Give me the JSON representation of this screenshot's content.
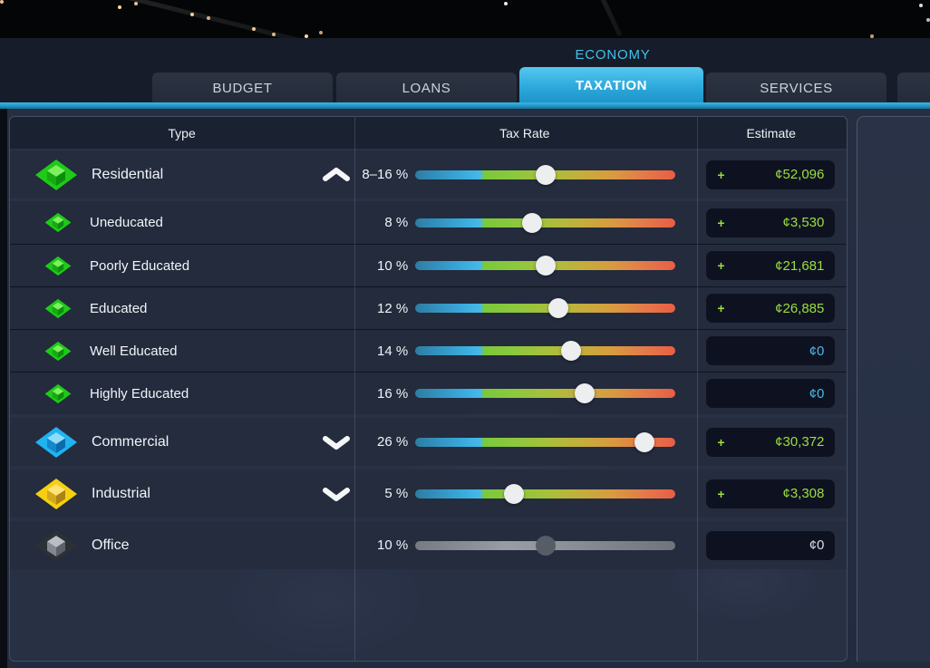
{
  "window": {
    "title": "ECONOMY"
  },
  "tabs": [
    {
      "label": "BUDGET",
      "active": false
    },
    {
      "label": "LOANS",
      "active": false
    },
    {
      "label": "TAXATION",
      "active": true
    },
    {
      "label": "SERVICES",
      "active": false
    }
  ],
  "table": {
    "columns": [
      "Type",
      "Tax Rate",
      "Estimate"
    ],
    "currency_symbol": "¢",
    "rows": [
      {
        "id": "residential",
        "label": "Residential",
        "kind": "parent",
        "icon": "residential-zone-icon",
        "icon_colors": {
          "base": "#1ecb17",
          "top": "#7df05f",
          "left": "#16a912",
          "right": "#0c8d0e"
        },
        "chevron": "up",
        "rate_label": "8–16 %",
        "slider_pct": 50,
        "slider_disabled": false,
        "estimate": {
          "plus": "+",
          "value": "¢52,096",
          "color": "#9ade3f"
        }
      },
      {
        "id": "uneducated",
        "label": "Uneducated",
        "kind": "sub",
        "icon": "residential-zone-icon",
        "icon_colors": {
          "base": "#1ecb17",
          "top": "#7df05f",
          "left": "#16a912",
          "right": "#0c8d0e"
        },
        "chevron": "none",
        "rate_label": "8 %",
        "slider_pct": 45,
        "slider_disabled": false,
        "estimate": {
          "plus": "+",
          "value": "¢3,530",
          "color": "#9ade3f"
        }
      },
      {
        "id": "poorly-educated",
        "label": "Poorly Educated",
        "kind": "sub",
        "icon": "residential-zone-icon",
        "icon_colors": {
          "base": "#1ecb17",
          "top": "#7df05f",
          "left": "#16a912",
          "right": "#0c8d0e"
        },
        "chevron": "none",
        "rate_label": "10 %",
        "slider_pct": 50,
        "slider_disabled": false,
        "estimate": {
          "plus": "+",
          "value": "¢21,681",
          "color": "#9ade3f"
        }
      },
      {
        "id": "educated",
        "label": "Educated",
        "kind": "sub",
        "icon": "residential-zone-icon",
        "icon_colors": {
          "base": "#1ecb17",
          "top": "#7df05f",
          "left": "#16a912",
          "right": "#0c8d0e"
        },
        "chevron": "none",
        "rate_label": "12 %",
        "slider_pct": 55,
        "slider_disabled": false,
        "estimate": {
          "plus": "+",
          "value": "¢26,885",
          "color": "#9ade3f"
        }
      },
      {
        "id": "well-educated",
        "label": "Well Educated",
        "kind": "sub",
        "icon": "residential-zone-icon",
        "icon_colors": {
          "base": "#1ecb17",
          "top": "#7df05f",
          "left": "#16a912",
          "right": "#0c8d0e"
        },
        "chevron": "none",
        "rate_label": "14 %",
        "slider_pct": 60,
        "slider_disabled": false,
        "estimate": {
          "plus": "",
          "value": "¢0",
          "color": "#49b8ea"
        }
      },
      {
        "id": "highly-educated",
        "label": "Highly Educated",
        "kind": "sub",
        "icon": "residential-zone-icon",
        "icon_colors": {
          "base": "#1ecb17",
          "top": "#7df05f",
          "left": "#16a912",
          "right": "#0c8d0e"
        },
        "chevron": "none",
        "rate_label": "16 %",
        "slider_pct": 65,
        "slider_disabled": false,
        "estimate": {
          "plus": "",
          "value": "¢0",
          "color": "#49b8ea"
        }
      },
      {
        "id": "commercial",
        "label": "Commercial",
        "kind": "parent",
        "icon": "commercial-zone-icon",
        "icon_colors": {
          "base": "#1fb3ef",
          "top": "#8edcf8",
          "left": "#1487cd",
          "right": "#0c6bab"
        },
        "chevron": "down",
        "rate_label": "26 %",
        "slider_pct": 88,
        "slider_disabled": false,
        "estimate": {
          "plus": "+",
          "value": "¢30,372",
          "color": "#9ade3f"
        }
      },
      {
        "id": "industrial",
        "label": "Industrial",
        "kind": "parent",
        "icon": "industrial-zone-icon",
        "icon_colors": {
          "base": "#f6d010",
          "top": "#ffe27a",
          "left": "#d2a81e",
          "right": "#ab8312"
        },
        "chevron": "down",
        "rate_label": "5 %",
        "slider_pct": 38,
        "slider_disabled": false,
        "estimate": {
          "plus": "+",
          "value": "¢3,308",
          "color": "#9ade3f"
        }
      },
      {
        "id": "office",
        "label": "Office",
        "kind": "parent",
        "icon": "office-zone-icon",
        "icon_colors": {
          "base": "#2c3136",
          "top": "#b8bec4",
          "left": "#82888f",
          "right": "#5c6268"
        },
        "chevron": "none",
        "rate_label": "10 %",
        "slider_pct": 50,
        "slider_disabled": true,
        "estimate": {
          "plus": "",
          "value": "¢0",
          "color": "#d8dce2"
        }
      }
    ]
  },
  "colors": {
    "accent_cyan": "#41c1ea",
    "tab_active": "#2da9dd",
    "estimate_positive": "#9ade3f",
    "estimate_zero": "#49b8ea",
    "estimate_disabled": "#d8dce2",
    "slider_handle": "#eceeef",
    "row_background": "#242c3e",
    "pill_background": "#0e1220"
  }
}
